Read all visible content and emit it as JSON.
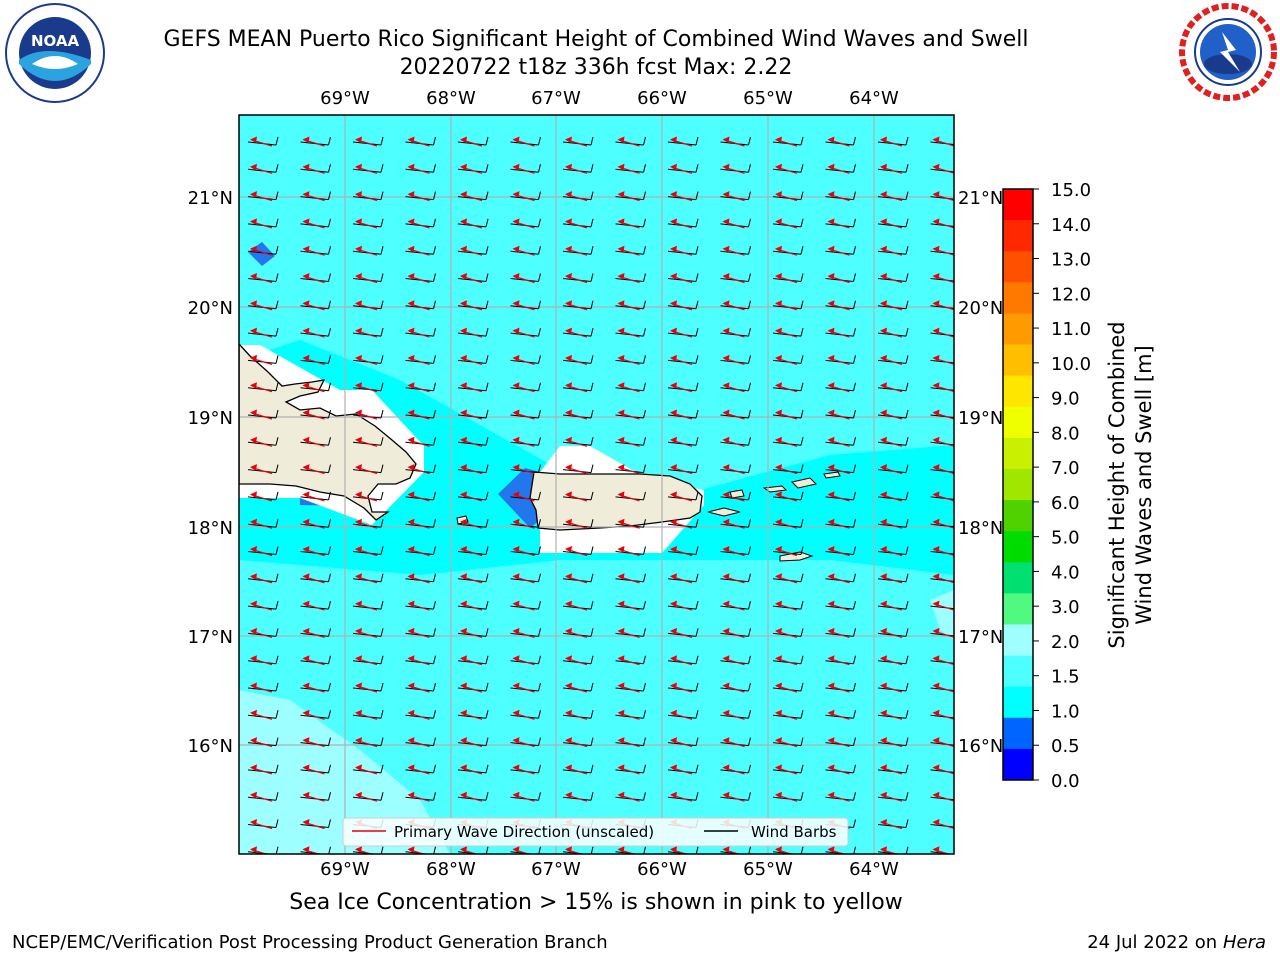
{
  "header": {
    "title_line1": "GEFS MEAN Puerto Rico Significant Height of Combined Wind Waves and Swell",
    "title_line2": "20220722 t18z 336h fcst   Max: 2.22"
  },
  "logos": {
    "left": {
      "name": "noaa-logo",
      "text": "NOAA",
      "ring_text": "NATIONAL OCEANIC AND ATMOSPHERIC ADMINISTRATION · U.S. DEPARTMENT OF COMMERCE"
    },
    "right": {
      "name": "nws-logo",
      "ring_text": "NATIONAL WEATHER SERVICE"
    }
  },
  "map": {
    "lon_labels": [
      "69°W",
      "68°W",
      "67°W",
      "66°W",
      "65°W",
      "64°W"
    ],
    "lat_labels": [
      "21°N",
      "20°N",
      "19°N",
      "18°N",
      "17°N",
      "16°N"
    ],
    "legend": {
      "primary_wave": "Primary Wave Direction (unscaled)",
      "wind_barbs": "Wind Barbs"
    },
    "colors": {
      "land": "#efecda",
      "sea_main": "#4dffff",
      "sea_calm": "#00ffff",
      "sea_light": "#9dffff",
      "sea_low": "#2277ee",
      "wave_arrow": "#e8000b",
      "barb": "#000000",
      "grid": "#b0b0b0"
    }
  },
  "colorbar": {
    "label_line1": "Significant Height of Combined",
    "label_line2": "Wind Waves and Swell [m]",
    "ticks": [
      "15.0",
      "14.0",
      "13.0",
      "12.0",
      "11.0",
      "10.0",
      "9.0",
      "8.0",
      "7.0",
      "6.0",
      "5.0",
      "4.0",
      "3.0",
      "2.0",
      "1.5",
      "1.0",
      "0.5",
      "0.0"
    ],
    "colors_top_to_bottom": [
      "#ff0000",
      "#ff2800",
      "#ff5000",
      "#ff7800",
      "#ff9a00",
      "#ffbe00",
      "#ffe600",
      "#f0ff00",
      "#c8f000",
      "#a0e600",
      "#50d200",
      "#00dc00",
      "#00e070",
      "#50fa80",
      "#a0ffff",
      "#4dffff",
      "#00ffff",
      "#0064ff",
      "#0000ff"
    ]
  },
  "caption": "Sea Ice Concentration > 15% is shown in pink to yellow",
  "footer": {
    "left": "NCEP/EMC/Verification Post Processing Product Generation Branch",
    "right_prefix": "24 Jul 2022 on ",
    "right_host": "Hera"
  }
}
